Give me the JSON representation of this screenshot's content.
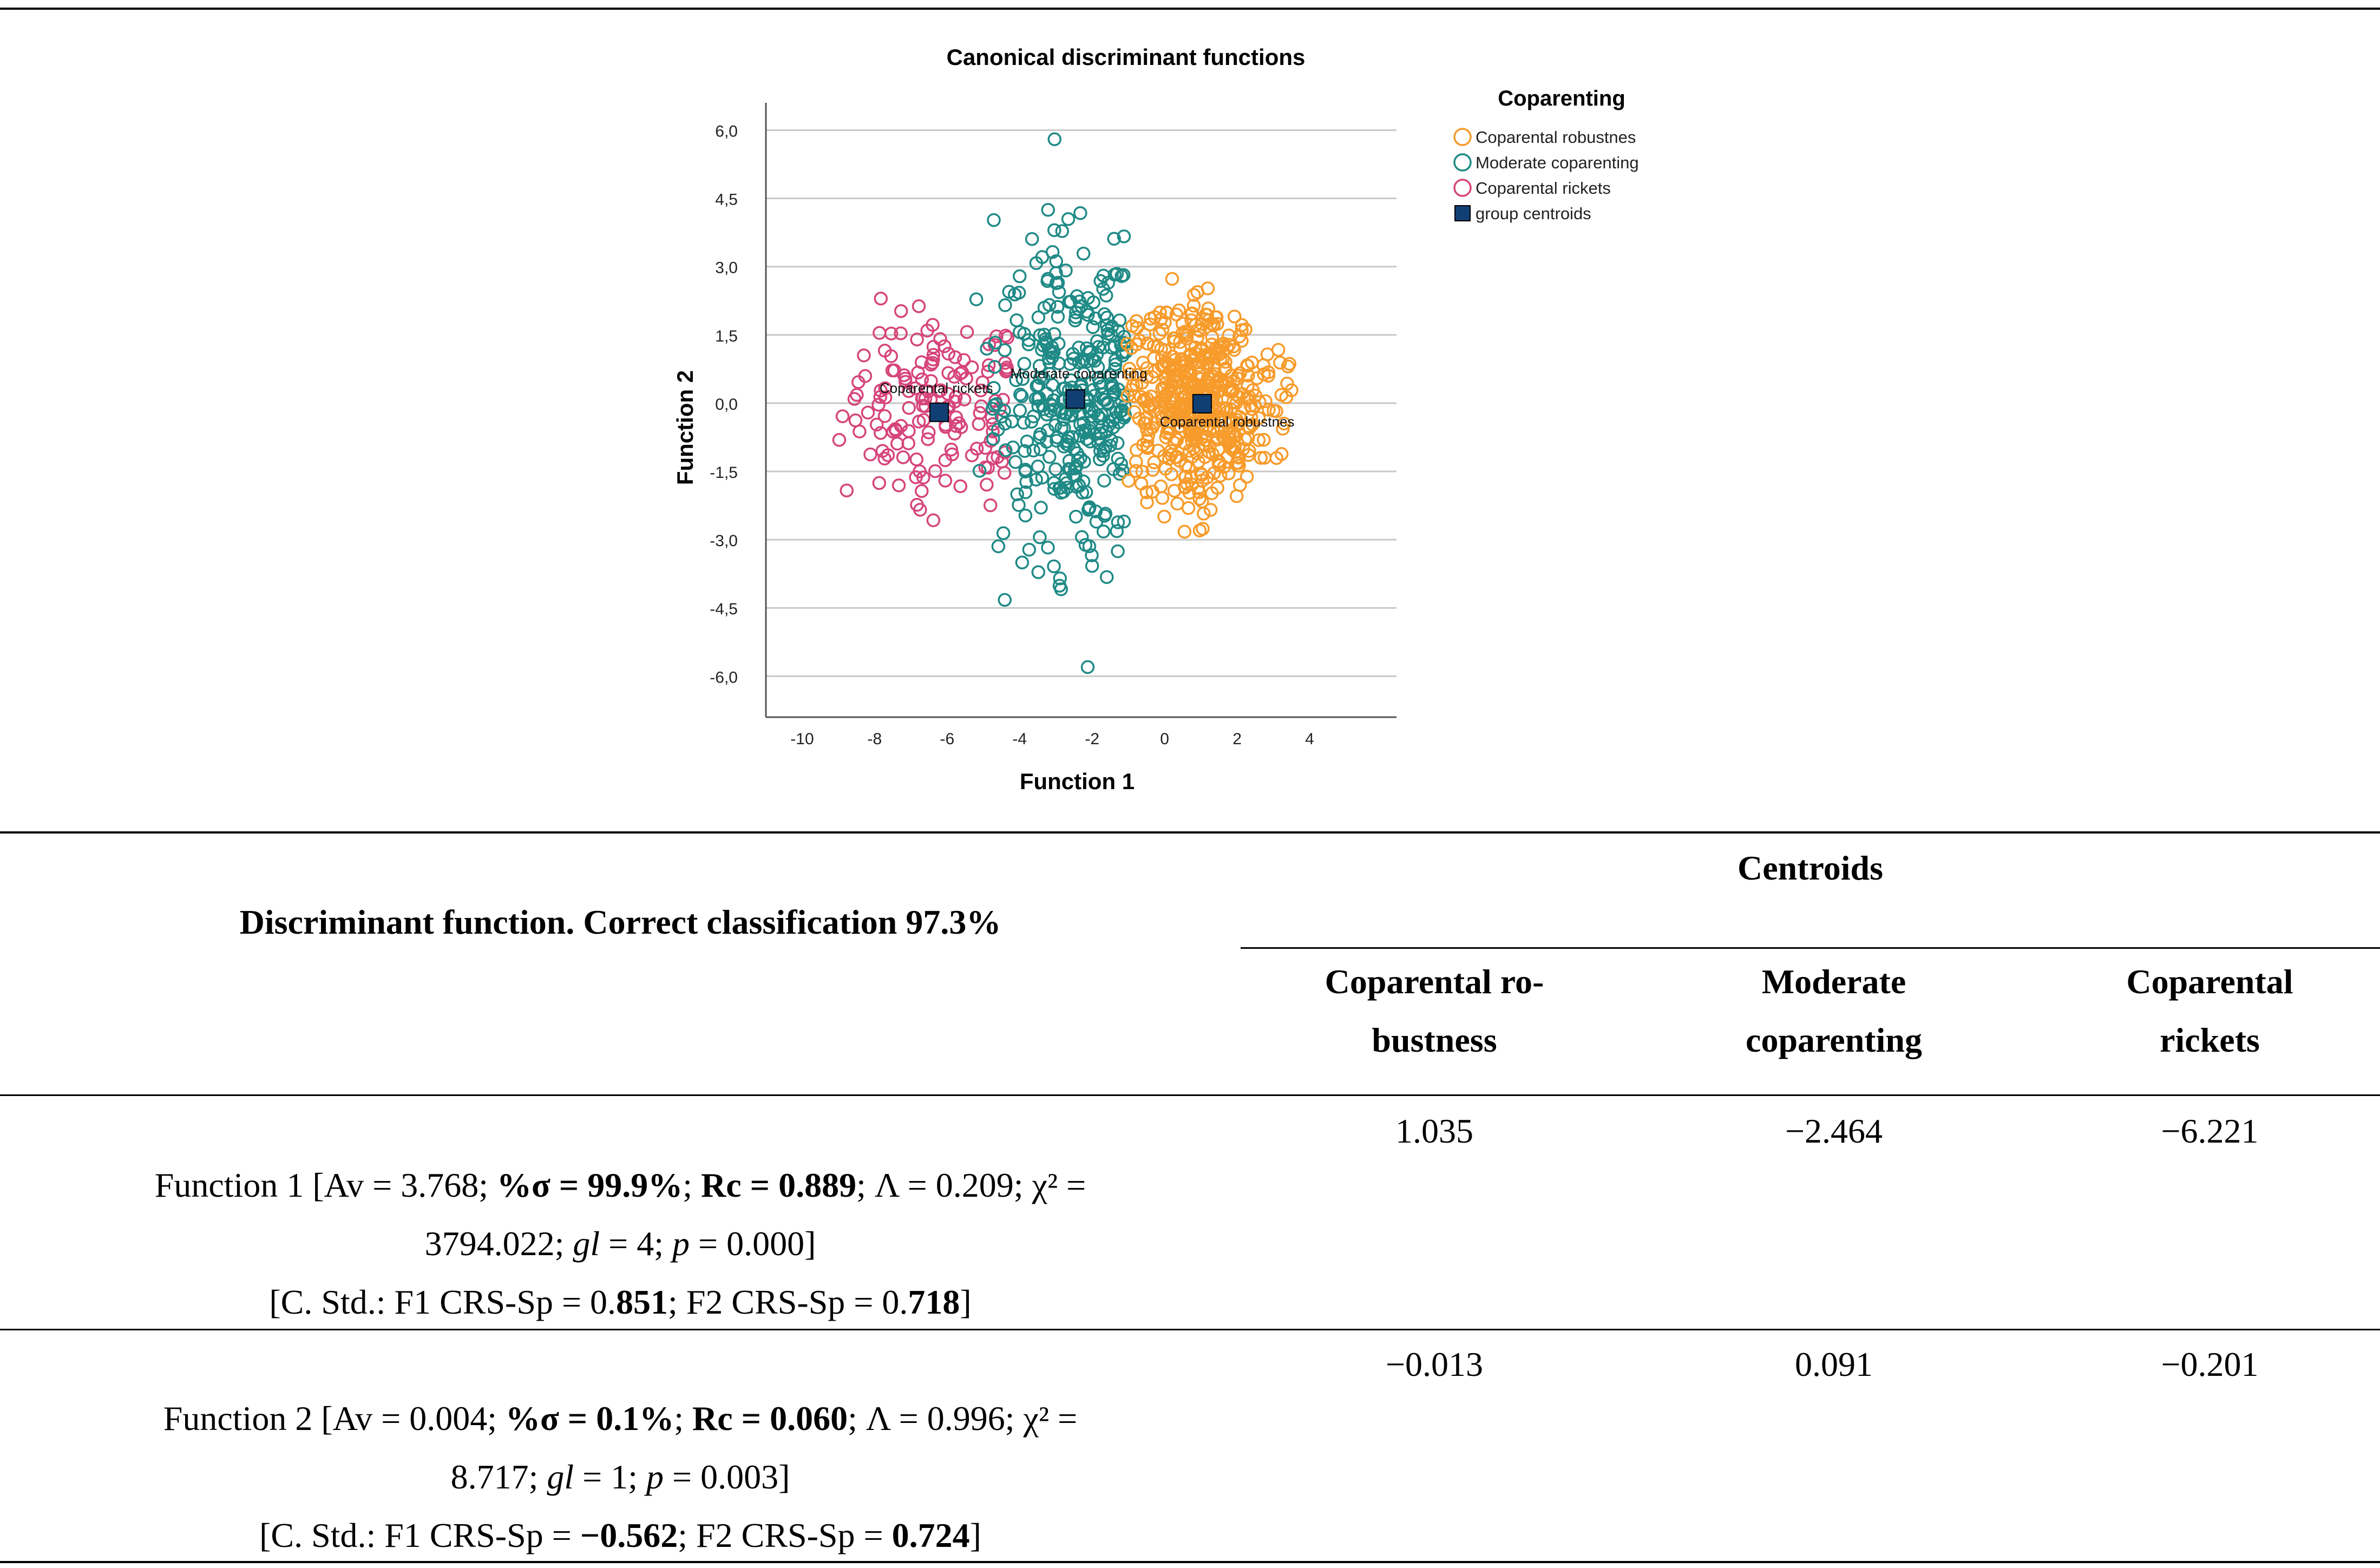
{
  "chart_data": {
    "type": "scatter",
    "title": "Canonical discriminant functions",
    "xlabel": "Function 1",
    "ylabel": "Function 2",
    "xlim": [
      -11,
      5.8
    ],
    "ylim": [
      -6.9,
      6.6
    ],
    "xticks": [
      "-10",
      "-8",
      "-6",
      "-4",
      "-2",
      "0",
      "2",
      "4"
    ],
    "yticks": [
      "6,0",
      "4,5",
      "3,0",
      "1,5",
      "0,0",
      "-1,5",
      "-3,0",
      "-4,5",
      "-6,0"
    ],
    "legend_title": "Coparenting",
    "legend_position": "top-right",
    "grid": "horizontal",
    "series": [
      {
        "name": "Coparental robustnes",
        "color": "#f79b2b",
        "center": [
          1.035,
          -0.013
        ]
      },
      {
        "name": "Moderate coparenting",
        "color": "#1f8a86",
        "center": [
          -2.464,
          0.091
        ]
      },
      {
        "name": "Coparental rickets",
        "color": "#d6457a",
        "center": [
          -6.221,
          -0.201
        ]
      }
    ],
    "centroids": {
      "name": "group centroids",
      "color": "#123f73",
      "points": [
        {
          "label": "Coparental robustnes",
          "x": 1.035,
          "y": -0.013
        },
        {
          "label": "Moderate coparenting",
          "x": -2.464,
          "y": 0.091
        },
        {
          "label": "Coparental rickets",
          "x": -6.221,
          "y": -0.201
        }
      ]
    }
  },
  "table": {
    "left_header": "Discriminant function. Correct classification 97.3%",
    "group_header": "Centroids",
    "col1": [
      "Coparental ro-",
      "bustness"
    ],
    "col2": [
      "Moderate",
      "coparenting"
    ],
    "col3": [
      "Coparental",
      "rickets"
    ],
    "row1": {
      "line1a": "Function 1 [Av = 3.768; ",
      "line1b": "%σ = 99.9%",
      "line1c": "; ",
      "line1d": "Rc = 0.889",
      "line1e": "; Λ = 0.209; χ² =",
      "line2a": "3794.022; ",
      "line2b": "gl",
      "line2c": " = 4; ",
      "line2d": "p",
      "line2e": " = 0.000]",
      "line3a": "[C. Std.: F1 CRS-Sp = 0.",
      "line3b": "851",
      "line3c": "; F2 CRS-Sp = 0.",
      "line3d": "718",
      "line3e": "]",
      "v1": "1.035",
      "v2": "−2.464",
      "v3": "−6.221"
    },
    "row2": {
      "line1a": "Function 2 [Av = 0.004; ",
      "line1b": "%σ = 0.1%",
      "line1c": "; ",
      "line1d": "Rc = 0.060",
      "line1e": "; Λ = 0.996; χ² =",
      "line2a": "8.717; ",
      "line2b": "gl",
      "line2c": " = 1; ",
      "line2d": "p",
      "line2e": " = 0.003]",
      "line3a": "[C. Std.: F1 CRS-Sp = ",
      "line3b": "−0.562",
      "line3c": "; F2 CRS-Sp = ",
      "line3d": "0.724",
      "line3e": "]",
      "v1": "−0.013",
      "v2": "0.091",
      "v3": "−0.201"
    }
  }
}
